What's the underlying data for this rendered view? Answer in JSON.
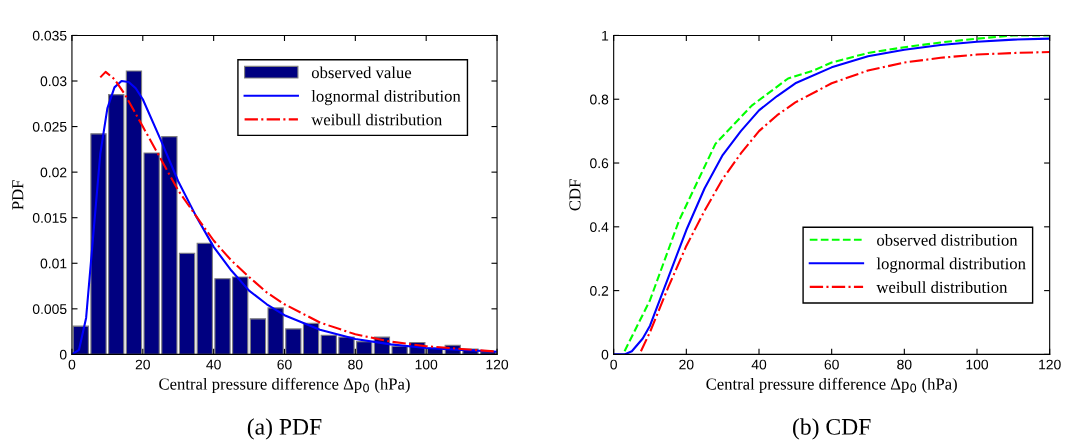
{
  "chart_data": [
    {
      "type": "histogram",
      "xlabel": "Central pressure difference Δp$_{0}$ (hPa)",
      "ylabel": "PDF",
      "annotations": [
        "(a) PDF"
      ],
      "series": [
        {
          "type": "histogram",
          "name": "observed value",
          "color": "#000080",
          "bins": [
            0,
            5,
            10,
            15,
            20,
            25,
            30,
            35,
            40,
            45,
            50,
            55,
            60,
            65,
            70,
            75,
            80,
            85,
            90,
            95,
            100,
            105,
            110,
            115,
            120
          ],
          "values": [
            0.0031,
            0.0242,
            0.0285,
            0.0311,
            0.0221,
            0.0239,
            0.0111,
            0.0122,
            0.0083,
            0.0085,
            0.0039,
            0.0051,
            0.0028,
            0.0034,
            0.0021,
            0.0019,
            0.0014,
            0.0019,
            0.0009,
            0.0013,
            0.0007,
            0.001,
            0.0006,
            0.0003
          ]
        },
        {
          "type": "line",
          "name": "lognormal distribution",
          "color": "#0000ff",
          "line_style": "solid",
          "x": [
            0,
            2,
            4,
            6,
            8,
            10,
            12,
            14,
            16,
            18,
            20,
            25,
            30,
            35,
            40,
            45,
            50,
            55,
            60,
            70,
            80,
            90,
            100,
            110,
            120
          ],
          "values": [
            0,
            0.0005,
            0.004,
            0.013,
            0.022,
            0.027,
            0.0293,
            0.03,
            0.0299,
            0.0292,
            0.028,
            0.0236,
            0.019,
            0.0152,
            0.0118,
            0.0092,
            0.007,
            0.0055,
            0.0043,
            0.0027,
            0.0017,
            0.0011,
            0.0007,
            0.0005,
            0.0003
          ]
        },
        {
          "type": "line",
          "name": "weibull distribution",
          "color": "#ff0000",
          "line_style": "dashdot",
          "x": [
            8,
            9.5,
            12,
            15,
            20,
            25,
            30,
            35,
            40,
            45,
            50,
            55,
            60,
            70,
            80,
            90,
            100,
            110,
            120
          ],
          "values": [
            0.0304,
            0.031,
            0.0302,
            0.0285,
            0.025,
            0.0215,
            0.018,
            0.0152,
            0.0125,
            0.0103,
            0.0085,
            0.0068,
            0.0055,
            0.0035,
            0.0022,
            0.0014,
            0.0009,
            0.0006,
            0.0003
          ]
        }
      ],
      "xlim": [
        0,
        120
      ],
      "xticks": [
        0,
        20,
        40,
        60,
        80,
        100,
        120
      ],
      "ylim": [
        0,
        0.035
      ],
      "yticks": [
        0,
        0.005,
        0.01,
        0.015,
        0.02,
        0.025,
        0.03,
        0.035
      ],
      "legend": "upper right",
      "grid": false
    },
    {
      "type": "line",
      "xlabel": "Central pressure difference Δp$_{0}$ (hPa)",
      "ylabel": "CDF",
      "annotations": [
        "(b) CDF"
      ],
      "series": [
        {
          "name": "observed distribution",
          "color": "#00ff00",
          "line_style": "dashed",
          "x": [
            3,
            10,
            18,
            28,
            38,
            48,
            55,
            60,
            70,
            80,
            90,
            100,
            110,
            120
          ],
          "values": [
            0.01,
            0.17,
            0.42,
            0.66,
            0.78,
            0.865,
            0.89,
            0.915,
            0.945,
            0.963,
            0.978,
            0.99,
            1.0,
            1.0
          ]
        },
        {
          "name": "lognormal distribution",
          "color": "#0000ff",
          "line_style": "solid",
          "x": [
            0,
            3,
            5,
            8,
            10,
            15,
            20,
            25,
            30,
            35,
            40,
            45,
            50,
            60,
            70,
            80,
            90,
            100,
            110,
            120
          ],
          "values": [
            0,
            0,
            0.01,
            0.05,
            0.09,
            0.24,
            0.39,
            0.52,
            0.625,
            0.7,
            0.765,
            0.81,
            0.85,
            0.9,
            0.935,
            0.955,
            0.97,
            0.98,
            0.987,
            0.99
          ]
        },
        {
          "name": "weibull distribution",
          "color": "#ff0000",
          "line_style": "dashdot",
          "x": [
            7.5,
            10,
            15,
            20,
            25,
            30,
            35,
            40,
            45,
            50,
            60,
            70,
            80,
            90,
            100,
            110,
            120
          ],
          "values": [
            0.01,
            0.07,
            0.21,
            0.34,
            0.45,
            0.55,
            0.63,
            0.7,
            0.75,
            0.79,
            0.85,
            0.89,
            0.915,
            0.93,
            0.94,
            0.945,
            0.948
          ]
        }
      ],
      "xlim": [
        0,
        120
      ],
      "xticks": [
        0,
        20,
        40,
        60,
        80,
        100,
        120
      ],
      "ylim": [
        0,
        1
      ],
      "yticks": [
        0,
        0.2,
        0.4,
        0.6,
        0.8,
        1
      ],
      "legend": "center right",
      "grid": false
    }
  ]
}
